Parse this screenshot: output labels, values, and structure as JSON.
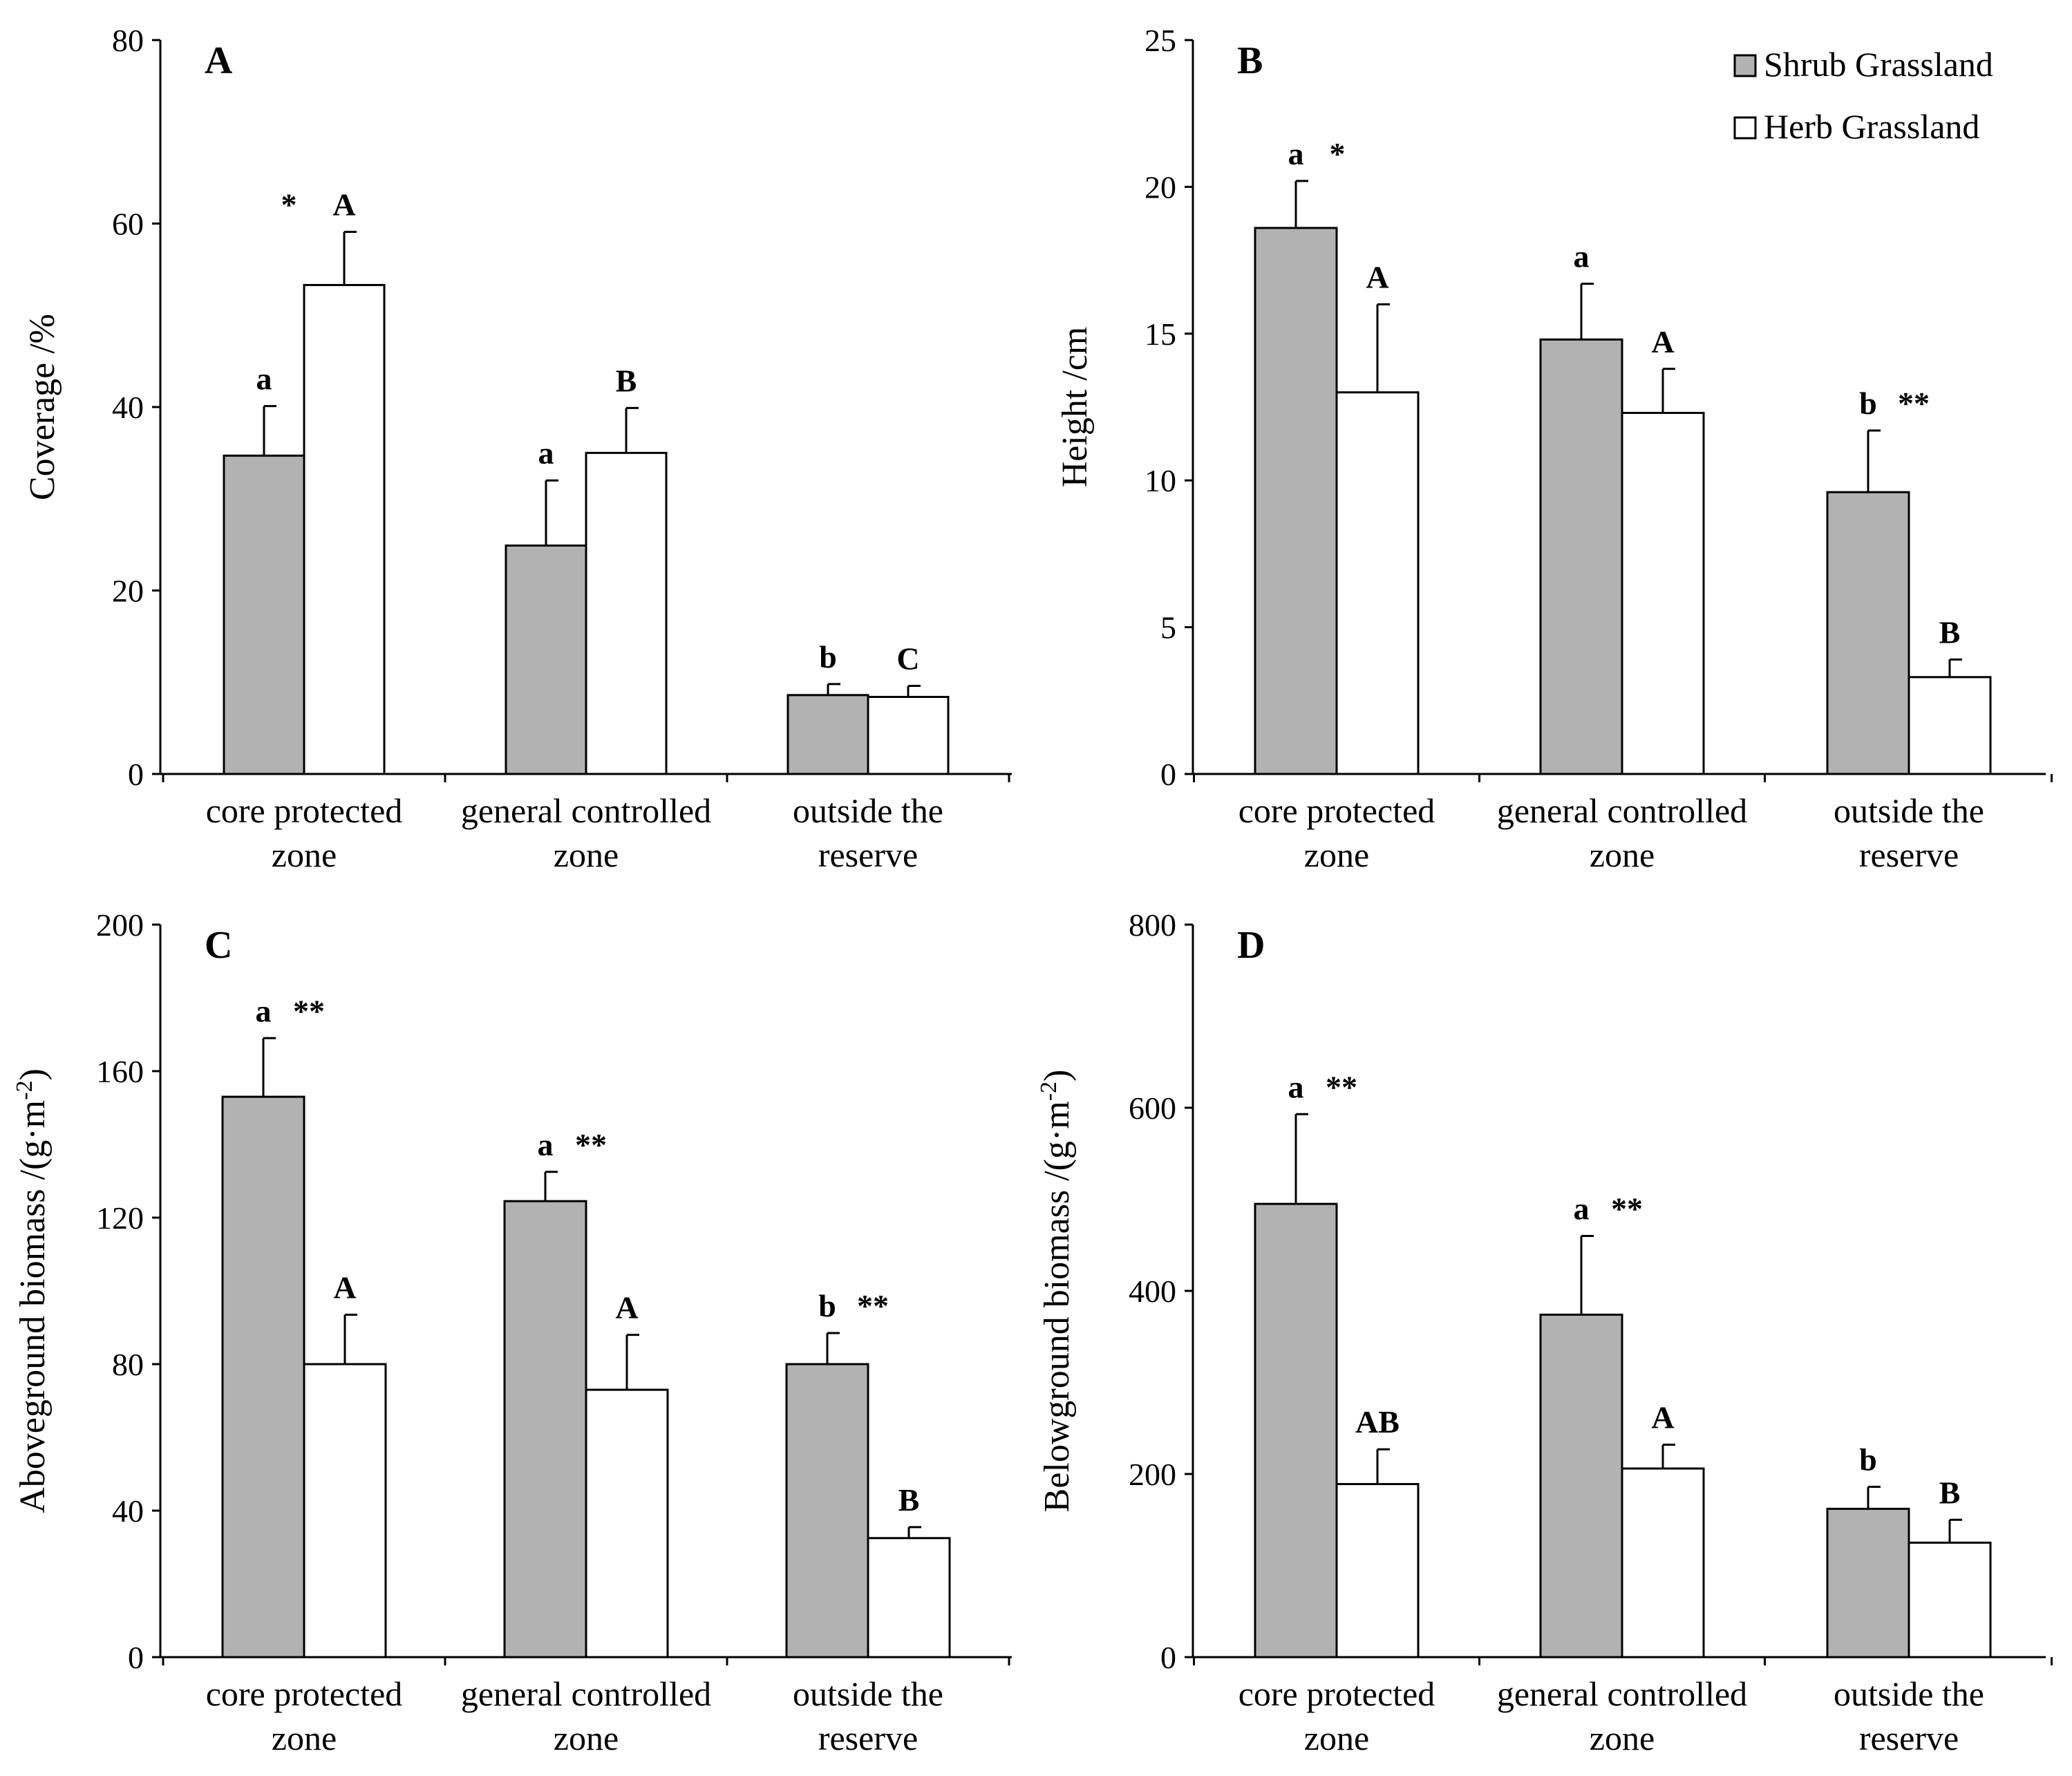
{
  "legend": {
    "shrub": "Shrub Grassland",
    "herb": "Herb Grassland"
  },
  "colors": {
    "shrub": "#b2b2b2",
    "herb": "#ffffff",
    "axis": "#000000"
  },
  "chart_data": [
    {
      "type": "bar",
      "panel_label": "A",
      "ylabel": "Coverage /%",
      "ylabel_sup": "",
      "ylabel_end": "",
      "ylim": [
        0,
        80
      ],
      "yticks": [
        0,
        20,
        40,
        60,
        80
      ],
      "categories": [
        [
          "core protected",
          "zone"
        ],
        [
          "general controlled",
          "zone"
        ],
        [
          "outside the",
          "reserve"
        ]
      ],
      "series": [
        {
          "name": "Shrub Grassland",
          "values": [
            34.7,
            24.9,
            8.6
          ],
          "errors": [
            5.4,
            7.1,
            1.2
          ],
          "letters": [
            "a",
            "a",
            "b"
          ],
          "stars": [
            "",
            "",
            ""
          ]
        },
        {
          "name": "Herb Grassland",
          "values": [
            53.3,
            35.0,
            8.4
          ],
          "errors": [
            5.8,
            4.9,
            1.2
          ],
          "letters": [
            "A",
            "B",
            "C"
          ],
          "stars": [
            "*",
            "",
            ""
          ]
        }
      ]
    },
    {
      "type": "bar",
      "panel_label": "B",
      "ylabel": "Height /cm",
      "ylabel_sup": "",
      "ylabel_end": "",
      "ylim": [
        0,
        25
      ],
      "yticks": [
        0,
        5,
        10,
        15,
        20,
        25
      ],
      "categories": [
        [
          "core protected",
          "zone"
        ],
        [
          "general controlled",
          "zone"
        ],
        [
          "outside the",
          "reserve"
        ]
      ],
      "series": [
        {
          "name": "Shrub Grassland",
          "values": [
            18.6,
            14.8,
            9.6
          ],
          "errors": [
            1.6,
            1.9,
            2.1
          ],
          "letters": [
            "a",
            "a",
            "b"
          ],
          "stars": [
            "*",
            "",
            "**"
          ]
        },
        {
          "name": "Herb Grassland",
          "values": [
            13.0,
            12.3,
            3.3
          ],
          "errors": [
            3.0,
            1.5,
            0.6
          ],
          "letters": [
            "A",
            "A",
            "B"
          ],
          "stars": [
            "",
            "",
            ""
          ]
        }
      ]
    },
    {
      "type": "bar",
      "panel_label": "C",
      "ylabel": "Aboveground biomass /(g·m",
      "ylabel_sup": "-2",
      "ylabel_end": ")",
      "ylim": [
        0,
        200
      ],
      "yticks": [
        0,
        40,
        80,
        120,
        160,
        200
      ],
      "categories": [
        [
          "core protected",
          "zone"
        ],
        [
          "general controlled",
          "zone"
        ],
        [
          "outside the",
          "reserve"
        ]
      ],
      "series": [
        {
          "name": "Shrub Grassland",
          "values": [
            153,
            124.5,
            80
          ],
          "errors": [
            16,
            8,
            8.5
          ],
          "letters": [
            "a",
            "a",
            "b"
          ],
          "stars": [
            "**",
            "**",
            "**"
          ]
        },
        {
          "name": "Herb Grassland",
          "values": [
            80,
            73,
            32.5
          ],
          "errors": [
            13.5,
            15,
            3
          ],
          "letters": [
            "A",
            "A",
            "B"
          ],
          "stars": [
            "",
            "",
            ""
          ]
        }
      ]
    },
    {
      "type": "bar",
      "panel_label": "D",
      "ylabel": "Belowground biomass /(g·m",
      "ylabel_sup": "-2",
      "ylabel_end": ")",
      "ylim": [
        0,
        800
      ],
      "yticks": [
        0,
        200,
        400,
        600,
        800
      ],
      "categories": [
        [
          "core protected",
          "zone"
        ],
        [
          "general controlled",
          "zone"
        ],
        [
          "outside the",
          "reserve"
        ]
      ],
      "series": [
        {
          "name": "Shrub Grassland",
          "values": [
            495,
            374,
            162
          ],
          "errors": [
            98,
            86,
            24
          ],
          "letters": [
            "a",
            "a",
            "b"
          ],
          "stars": [
            "**",
            "**",
            ""
          ]
        },
        {
          "name": "Herb Grassland",
          "values": [
            189,
            206,
            125
          ],
          "errors": [
            38,
            26,
            25
          ],
          "letters": [
            "AB",
            "A",
            "B"
          ],
          "stars": [
            "",
            "",
            ""
          ]
        }
      ]
    }
  ]
}
